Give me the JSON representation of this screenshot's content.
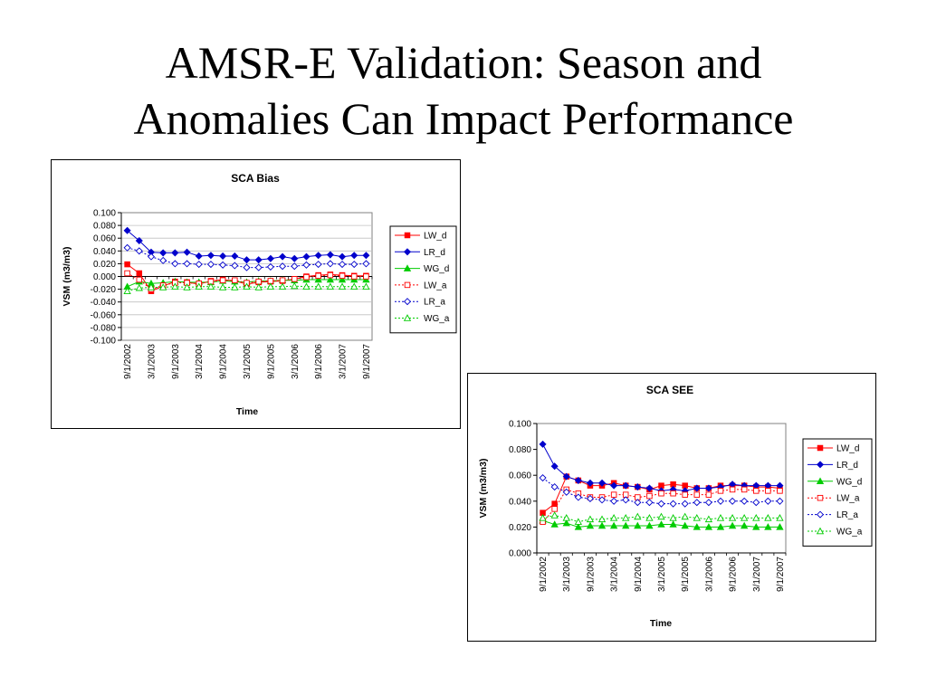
{
  "slide": {
    "title_line1": "AMSR-E Validation: Season and",
    "title_line2": "Anomalies Can Impact Performance"
  },
  "colors": {
    "LW": "#ff0000",
    "LR": "#0000cc",
    "WG": "#00cc00",
    "zero_line": "#000000",
    "grid": "#c0c0c0"
  },
  "chart_data": [
    {
      "type": "line",
      "title": "SCA Bias",
      "xlabel": "Time",
      "ylabel": "VSM (m3/m3)",
      "ylim": [
        -0.1,
        0.1
      ],
      "yticks": [
        "0.100",
        "0.080",
        "0.060",
        "0.040",
        "0.020",
        "0.000",
        "-0.020",
        "-0.040",
        "-0.060",
        "-0.080",
        "-0.100"
      ],
      "x_tick_labels": [
        "9/1/2002",
        "3/1/2003",
        "9/1/2003",
        "3/1/2004",
        "9/1/2004",
        "3/1/2005",
        "9/1/2005",
        "3/1/2006",
        "9/1/2006",
        "3/1/2007",
        "9/1/2007"
      ],
      "x": [
        "9/1/2002",
        "12/1/2002",
        "3/1/2003",
        "6/1/2003",
        "9/1/2003",
        "12/1/2003",
        "3/1/2004",
        "6/1/2004",
        "9/1/2004",
        "12/1/2004",
        "3/1/2005",
        "6/1/2005",
        "9/1/2005",
        "12/1/2005",
        "3/1/2006",
        "6/1/2006",
        "9/1/2006",
        "12/1/2006",
        "3/1/2007",
        "6/1/2007",
        "9/1/2007"
      ],
      "grid": "horizontal",
      "legend_position": "right",
      "series": [
        {
          "name": "LW_d",
          "color": "#ff0000",
          "marker": "square",
          "filled": true,
          "dashed": false,
          "values": [
            0.019,
            0.005,
            -0.023,
            -0.015,
            -0.008,
            -0.009,
            -0.012,
            -0.007,
            -0.005,
            -0.007,
            -0.012,
            -0.009,
            -0.008,
            -0.007,
            -0.004,
            0.0,
            0.002,
            0.003,
            0.002,
            0.001,
            0.001
          ]
        },
        {
          "name": "LR_d",
          "color": "#0000cc",
          "marker": "diamond",
          "filled": true,
          "dashed": false,
          "values": [
            0.072,
            0.056,
            0.038,
            0.037,
            0.037,
            0.038,
            0.032,
            0.033,
            0.032,
            0.032,
            0.026,
            0.026,
            0.028,
            0.031,
            0.028,
            0.031,
            0.033,
            0.034,
            0.031,
            0.033,
            0.033
          ]
        },
        {
          "name": "WG_d",
          "color": "#00cc00",
          "marker": "triangle",
          "filled": true,
          "dashed": false,
          "values": [
            -0.016,
            -0.008,
            -0.011,
            -0.01,
            -0.008,
            -0.009,
            -0.009,
            -0.009,
            -0.007,
            -0.008,
            -0.009,
            -0.007,
            -0.007,
            -0.006,
            -0.006,
            -0.005,
            -0.005,
            -0.005,
            -0.005,
            -0.005,
            -0.005
          ]
        },
        {
          "name": "LW_a",
          "color": "#ff0000",
          "marker": "square",
          "filled": false,
          "dashed": true,
          "values": [
            0.005,
            -0.005,
            -0.02,
            -0.014,
            -0.01,
            -0.01,
            -0.011,
            -0.008,
            -0.006,
            -0.006,
            -0.01,
            -0.008,
            -0.007,
            -0.006,
            -0.004,
            -0.001,
            0.001,
            0.002,
            0.001,
            0.0,
            0.0
          ]
        },
        {
          "name": "LR_a",
          "color": "#0000cc",
          "marker": "diamond",
          "filled": false,
          "dashed": true,
          "values": [
            0.045,
            0.04,
            0.031,
            0.025,
            0.02,
            0.02,
            0.019,
            0.019,
            0.018,
            0.017,
            0.014,
            0.014,
            0.015,
            0.016,
            0.016,
            0.018,
            0.019,
            0.02,
            0.019,
            0.019,
            0.02
          ]
        },
        {
          "name": "WG_a",
          "color": "#00cc00",
          "marker": "triangle",
          "filled": false,
          "dashed": true,
          "values": [
            -0.023,
            -0.018,
            -0.017,
            -0.017,
            -0.016,
            -0.017,
            -0.016,
            -0.016,
            -0.017,
            -0.017,
            -0.016,
            -0.017,
            -0.016,
            -0.016,
            -0.015,
            -0.016,
            -0.016,
            -0.016,
            -0.016,
            -0.016,
            -0.016
          ]
        }
      ]
    },
    {
      "type": "line",
      "title": "SCA SEE",
      "xlabel": "Time",
      "ylabel": "VSM (m3/m3)",
      "ylim": [
        0,
        0.1
      ],
      "yticks": [
        "0.100",
        "0.080",
        "0.060",
        "0.040",
        "0.020",
        "0.000"
      ],
      "x_tick_labels": [
        "9/1/2002",
        "3/1/2003",
        "9/1/2003",
        "3/1/2004",
        "9/1/2004",
        "3/1/2005",
        "9/1/2005",
        "3/1/2006",
        "9/1/2006",
        "3/1/2007",
        "9/1/2007"
      ],
      "x": [
        "9/1/2002",
        "12/1/2002",
        "3/1/2003",
        "6/1/2003",
        "9/1/2003",
        "12/1/2003",
        "3/1/2004",
        "6/1/2004",
        "9/1/2004",
        "12/1/2004",
        "3/1/2005",
        "6/1/2005",
        "9/1/2005",
        "12/1/2005",
        "3/1/2006",
        "6/1/2006",
        "9/1/2006",
        "12/1/2006",
        "3/1/2007",
        "6/1/2007",
        "9/1/2007"
      ],
      "grid": "none",
      "legend_position": "right",
      "series": [
        {
          "name": "LW_d",
          "color": "#ff0000",
          "marker": "square",
          "filled": true,
          "dashed": false,
          "values": [
            0.031,
            0.038,
            0.059,
            0.056,
            0.052,
            0.052,
            0.054,
            0.052,
            0.051,
            0.049,
            0.052,
            0.053,
            0.052,
            0.05,
            0.05,
            0.052,
            0.052,
            0.052,
            0.051,
            0.051,
            0.05
          ]
        },
        {
          "name": "LR_d",
          "color": "#0000cc",
          "marker": "diamond",
          "filled": true,
          "dashed": false,
          "values": [
            0.084,
            0.067,
            0.059,
            0.056,
            0.054,
            0.054,
            0.052,
            0.052,
            0.051,
            0.05,
            0.048,
            0.049,
            0.048,
            0.05,
            0.05,
            0.051,
            0.053,
            0.052,
            0.052,
            0.052,
            0.052
          ]
        },
        {
          "name": "WG_d",
          "color": "#00cc00",
          "marker": "triangle",
          "filled": true,
          "dashed": false,
          "values": [
            0.025,
            0.022,
            0.023,
            0.02,
            0.021,
            0.021,
            0.021,
            0.021,
            0.021,
            0.021,
            0.022,
            0.022,
            0.021,
            0.02,
            0.02,
            0.02,
            0.021,
            0.021,
            0.02,
            0.02,
            0.02
          ]
        },
        {
          "name": "LW_a",
          "color": "#ff0000",
          "marker": "square",
          "filled": false,
          "dashed": true,
          "values": [
            0.024,
            0.034,
            0.049,
            0.046,
            0.043,
            0.043,
            0.045,
            0.045,
            0.043,
            0.044,
            0.046,
            0.046,
            0.045,
            0.045,
            0.045,
            0.048,
            0.049,
            0.049,
            0.048,
            0.048,
            0.048
          ]
        },
        {
          "name": "LR_a",
          "color": "#0000cc",
          "marker": "diamond",
          "filled": false,
          "dashed": true,
          "values": [
            0.058,
            0.051,
            0.047,
            0.043,
            0.042,
            0.041,
            0.04,
            0.041,
            0.039,
            0.039,
            0.038,
            0.038,
            0.038,
            0.039,
            0.039,
            0.04,
            0.04,
            0.04,
            0.039,
            0.04,
            0.04
          ]
        },
        {
          "name": "WG_a",
          "color": "#00cc00",
          "marker": "triangle",
          "filled": false,
          "dashed": true,
          "values": [
            0.027,
            0.029,
            0.027,
            0.024,
            0.026,
            0.026,
            0.027,
            0.027,
            0.028,
            0.027,
            0.028,
            0.027,
            0.028,
            0.027,
            0.026,
            0.027,
            0.027,
            0.027,
            0.027,
            0.027,
            0.027
          ]
        }
      ]
    }
  ]
}
